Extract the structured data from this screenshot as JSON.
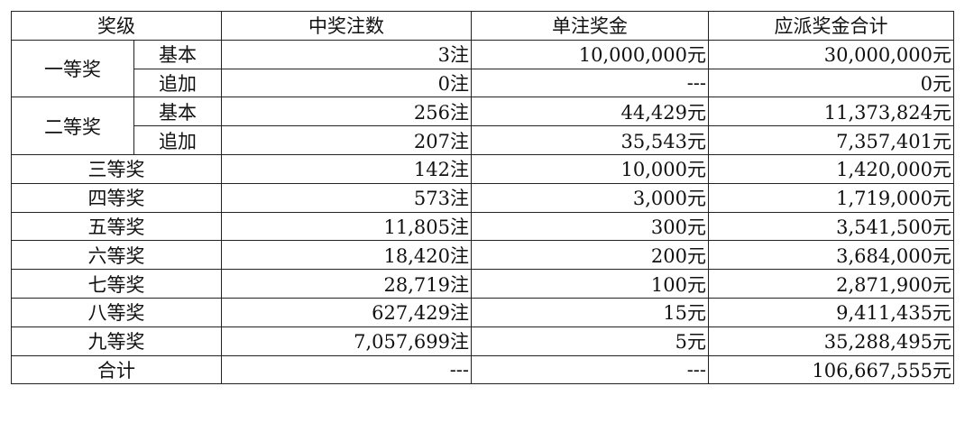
{
  "table": {
    "header": [
      "奖级",
      "中奖注数",
      "单注奖金",
      "应派奖金合计"
    ],
    "groups": [
      {
        "label": "一等奖",
        "rows": [
          {
            "sub": "基本",
            "cells": [
              "3注",
              "10,000,000元",
              "30,000,000元"
            ]
          },
          {
            "sub": "追加",
            "cells": [
              "0注",
              "---",
              "0元"
            ]
          }
        ]
      },
      {
        "label": "二等奖",
        "rows": [
          {
            "sub": "基本",
            "cells": [
              "256注",
              "44,429元",
              "11,373,824元"
            ]
          },
          {
            "sub": "追加",
            "cells": [
              "207注",
              "35,543元",
              "7,357,401元"
            ]
          }
        ]
      },
      {
        "label": "三等奖",
        "cells": [
          "142注",
          "10,000元",
          "1,420,000元"
        ]
      },
      {
        "label": "四等奖",
        "cells": [
          "573注",
          "3,000元",
          "1,719,000元"
        ]
      },
      {
        "label": "五等奖",
        "cells": [
          "11,805注",
          "300元",
          "3,541,500元"
        ]
      },
      {
        "label": "六等奖",
        "cells": [
          "18,420注",
          "200元",
          "3,684,000元"
        ]
      },
      {
        "label": "七等奖",
        "cells": [
          "28,719注",
          "100元",
          "2,871,900元"
        ]
      },
      {
        "label": "八等奖",
        "cells": [
          "627,429注",
          "15元",
          "9,411,435元"
        ]
      },
      {
        "label": "九等奖",
        "cells": [
          "7,057,699注",
          "5元",
          "35,288,495元"
        ]
      },
      {
        "label": "合计",
        "cells": [
          "---",
          "---",
          "106,667,555元"
        ]
      }
    ]
  }
}
